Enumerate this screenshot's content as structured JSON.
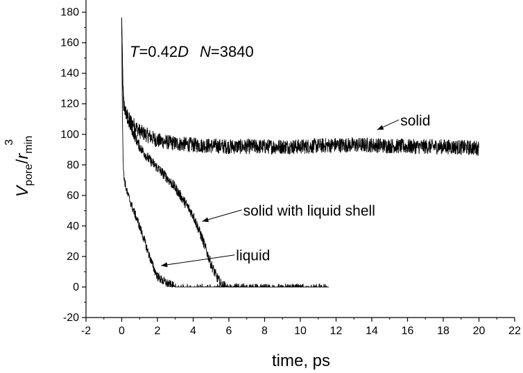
{
  "chart_data": {
    "type": "line",
    "title": "",
    "annotation_params": {
      "t_sym": "T",
      "t_eq": "=0.42",
      "t_unit": "D",
      "n_sym": "N",
      "n_eq": "=3840"
    },
    "xlabel": "time, ps",
    "ylabel": {
      "v": "V",
      "v_sub": "pore",
      "slash": "/",
      "r": "r",
      "r_sub": "min",
      "r_sup": "3"
    },
    "xlim": [
      -2,
      22
    ],
    "ylim": [
      -20,
      188
    ],
    "xticks": [
      -2,
      0,
      2,
      4,
      6,
      8,
      10,
      12,
      14,
      16,
      18,
      20,
      22
    ],
    "yticks": [
      -20,
      0,
      20,
      40,
      60,
      80,
      100,
      120,
      140,
      160,
      180
    ],
    "grid": false,
    "legend": "none",
    "line_color": "#000000",
    "series": [
      {
        "name": "solid",
        "x": [
          0,
          0.05,
          0.1,
          0.2,
          0.4,
          0.7,
          1,
          1.5,
          2,
          3,
          4,
          6,
          8,
          10,
          12,
          14,
          16,
          18,
          20
        ],
        "y": [
          175,
          140,
          122,
          115,
          110,
          106,
          102,
          99,
          96,
          94,
          93,
          92,
          92,
          92,
          93,
          93,
          92,
          92,
          91
        ],
        "noise": 5
      },
      {
        "name": "solid with liquid shell",
        "x": [
          0,
          0.05,
          0.1,
          0.3,
          0.6,
          1,
          1.5,
          2,
          2.5,
          3,
          3.5,
          4,
          4.5,
          5,
          5.3,
          5.6,
          6,
          8,
          10,
          11.6
        ],
        "y": [
          175,
          140,
          118,
          110,
          102,
          92,
          84,
          78,
          72,
          65,
          56,
          47,
          32,
          15,
          7,
          1,
          0,
          0,
          0,
          0
        ],
        "noise": 3.5
      },
      {
        "name": "liquid",
        "x": [
          0,
          0.03,
          0.08,
          0.15,
          0.3,
          0.6,
          0.9,
          1.2,
          1.5,
          1.8,
          2,
          2.3,
          2.6,
          3,
          4,
          6,
          8,
          10,
          11.6
        ],
        "y": [
          175,
          120,
          80,
          70,
          62,
          52,
          43,
          33,
          22,
          12,
          7,
          4,
          2,
          0,
          0,
          0,
          0,
          0,
          0
        ],
        "noise": 3
      }
    ],
    "annotations": [
      {
        "text": "solid",
        "label_x": 15.6,
        "label_y": 109.5,
        "arrow_to": [
          14.3,
          103
        ]
      },
      {
        "text": "solid with liquid shell",
        "label_x": 6.8,
        "label_y": 50.5,
        "arrow_to": [
          4.5,
          43
        ]
      },
      {
        "text": "liquid",
        "label_x": 6.4,
        "label_y": 21,
        "arrow_to": [
          2.2,
          14
        ]
      }
    ]
  }
}
